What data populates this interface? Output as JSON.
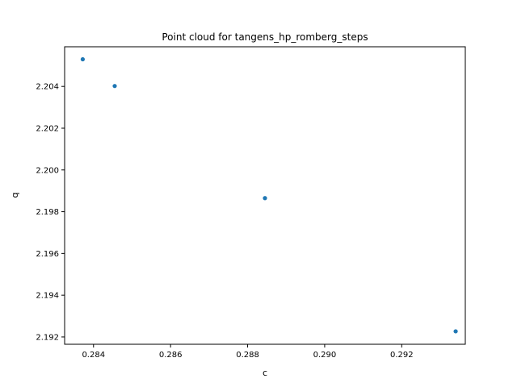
{
  "chart_data": {
    "type": "scatter",
    "title": "Point cloud for tangens_hp_romberg_steps",
    "xlabel": "c",
    "ylabel": "q",
    "xlim": [
      0.28325,
      0.29365
    ],
    "ylim": [
      2.19165,
      2.2059
    ],
    "xticks": [
      0.284,
      0.286,
      0.288,
      0.29,
      0.292
    ],
    "xtick_labels": [
      "0.284",
      "0.286",
      "0.288",
      "0.290",
      "0.292"
    ],
    "yticks": [
      2.192,
      2.194,
      2.196,
      2.198,
      2.2,
      2.202,
      2.204
    ],
    "ytick_labels": [
      "2.192",
      "2.194",
      "2.196",
      "2.198",
      "2.200",
      "2.202",
      "2.204"
    ],
    "grid": false,
    "marker_color": "#1f77b4",
    "points": [
      {
        "x": 0.28372,
        "y": 2.2053
      },
      {
        "x": 0.28455,
        "y": 2.20402
      },
      {
        "x": 0.28845,
        "y": 2.19865
      },
      {
        "x": 0.2934,
        "y": 2.19227
      }
    ]
  }
}
